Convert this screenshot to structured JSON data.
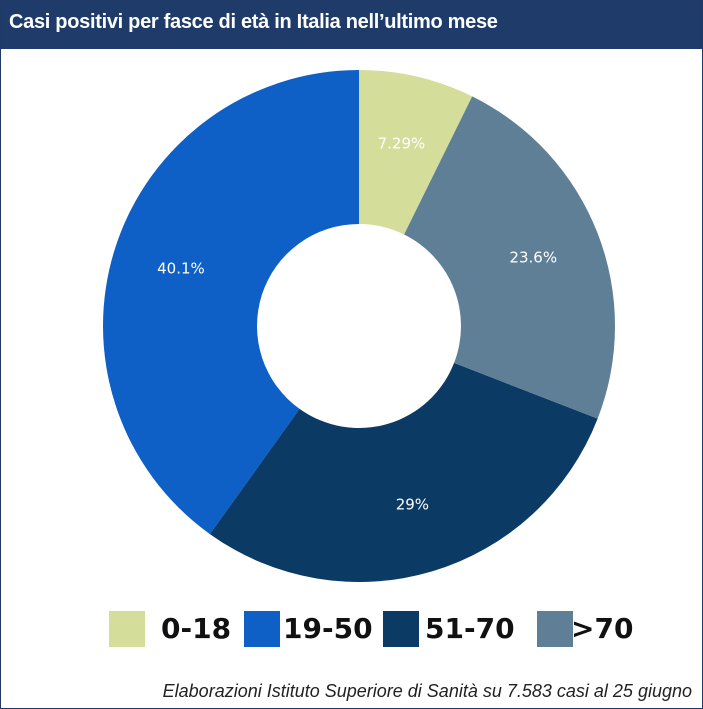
{
  "chart_data": {
    "type": "donut",
    "title": "Casi positivi per fasce di età in Italia nell’ultimo mese",
    "categories": [
      "0-18",
      "19-50",
      "51-70",
      ">70"
    ],
    "values": [
      7.29,
      40.1,
      29,
      23.6
    ],
    "value_labels": [
      "7.29%",
      "40.1%",
      "29%",
      "23.6%"
    ],
    "colors": [
      "#d5dd9b",
      "#0e60c7",
      "#0b3b64",
      "#5f7f97"
    ],
    "source": "Elaborazioni Istituto Superiore di Sanità su 7.583 casi al 25 giugno"
  }
}
